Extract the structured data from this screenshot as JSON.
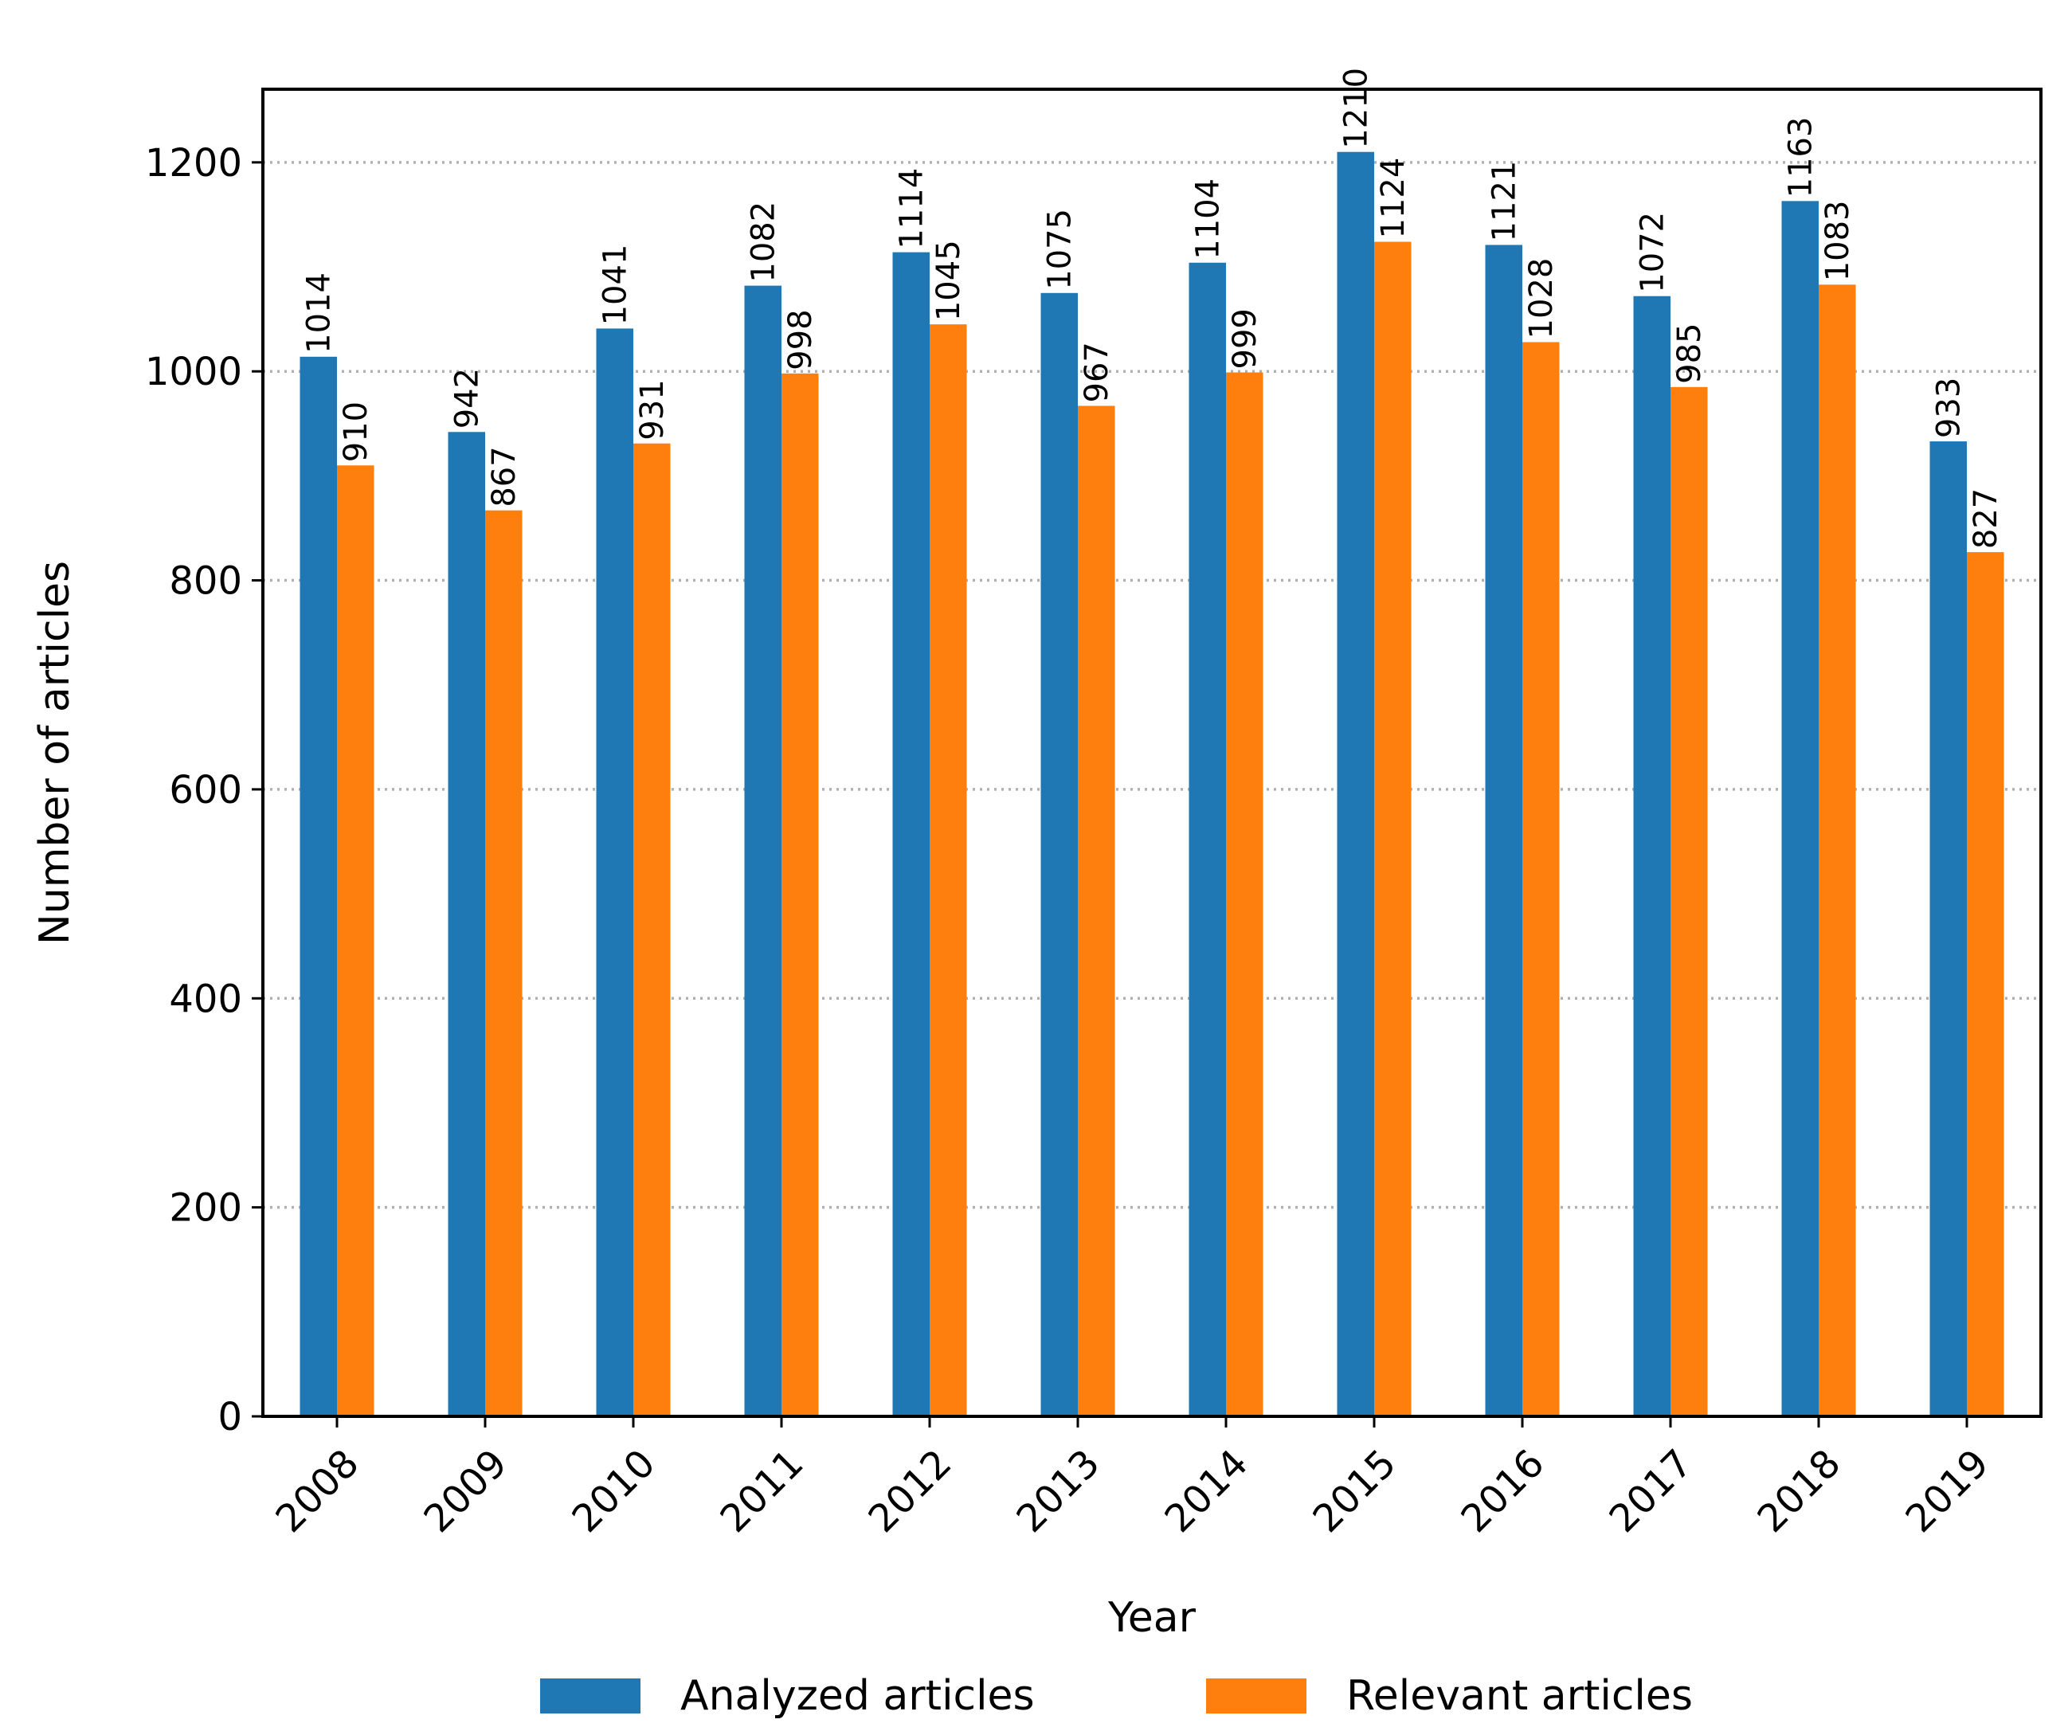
{
  "chart_data": {
    "type": "bar",
    "title": "",
    "xlabel": "Year",
    "ylabel": "Number of articles",
    "categories": [
      "2008",
      "2009",
      "2010",
      "2011",
      "2012",
      "2013",
      "2014",
      "2015",
      "2016",
      "2017",
      "2018",
      "2019"
    ],
    "series": [
      {
        "name": "Analyzed articles",
        "color": "#1f77b4",
        "values": [
          1014,
          942,
          1041,
          1082,
          1114,
          1075,
          1104,
          1210,
          1121,
          1072,
          1163,
          933
        ],
        "labels": [
          "1014",
          "942",
          "1041",
          "1082",
          "1114",
          "1075",
          "1104",
          "1210",
          "1121",
          "1072",
          "1163",
          "933"
        ]
      },
      {
        "name": "Relevant articles",
        "color": "#ff7f0e",
        "values": [
          910,
          867,
          931,
          998,
          1045,
          967,
          999,
          1124,
          1028,
          985,
          1083,
          827
        ],
        "labels": [
          "910",
          "867",
          "931",
          "998",
          "1045",
          "967",
          "999",
          "1124",
          "1028",
          "985",
          "1083",
          "827"
        ]
      }
    ],
    "ylim": [
      0,
      1270
    ],
    "yticks": [
      0,
      200,
      400,
      600,
      800,
      1000,
      1200
    ],
    "ytick_labels": [
      "0",
      "200",
      "400",
      "600",
      "800",
      "1000",
      "1200"
    ],
    "grid": "y-dotted",
    "legend_position": "bottom-center"
  }
}
